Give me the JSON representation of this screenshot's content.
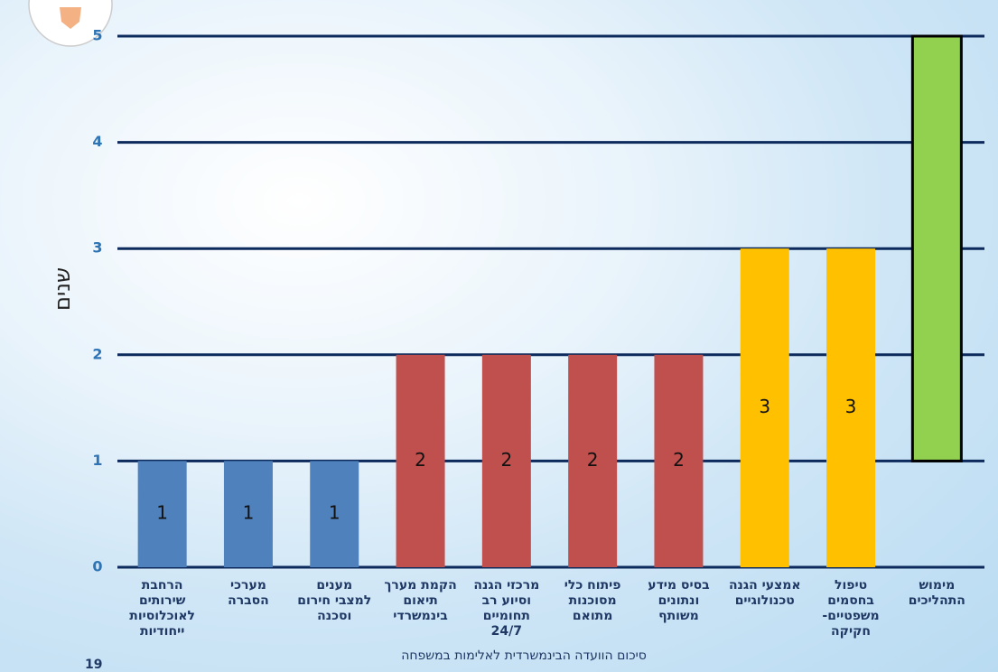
{
  "chart_data": {
    "type": "bar",
    "y_label": "שנים",
    "categories": [
      "הרחבת\nשירותים\nלאוכלוסיות\nייחודיות",
      "מערכי\nהסברה",
      "מענים\nלמצבי חירום\nוסכנה",
      "הקמת מערך\nתיאום\nבינמשרדי",
      "מרכזי הגנה\nוסיוע רב\nתחומיים\n24/7",
      "פיתוח כלי\nמסוכנות\nמתואם",
      "בסיס מידע\nונתונים\nמשותף",
      "אמצעי הגנה\nטכנולוגיים",
      "טיפול\nבחסמים\nמשפטיים-\nחקיקה",
      "מימוש\nהתהליכים"
    ],
    "values": [
      1,
      1,
      1,
      2,
      2,
      2,
      2,
      3,
      3,
      5
    ],
    "bar_starts": [
      0,
      0,
      0,
      0,
      0,
      0,
      0,
      0,
      0,
      1
    ],
    "value_labels": [
      "1",
      "1",
      "1",
      "2",
      "2",
      "2",
      "2",
      "3",
      "3",
      null
    ],
    "colors": [
      "#4f81bd",
      "#4f81bd",
      "#4f81bd",
      "#c0504d",
      "#c0504d",
      "#c0504d",
      "#c0504d",
      "#ffc000",
      "#ffc000",
      "#92d050"
    ],
    "ylim": [
      0,
      5
    ],
    "yticks": [
      0,
      1,
      2,
      3,
      4,
      5
    ],
    "grid": true
  },
  "footer": {
    "caption": "סיכום הוועדה הבינמשרדית לאלימות במשפחה",
    "page_number": "19"
  }
}
